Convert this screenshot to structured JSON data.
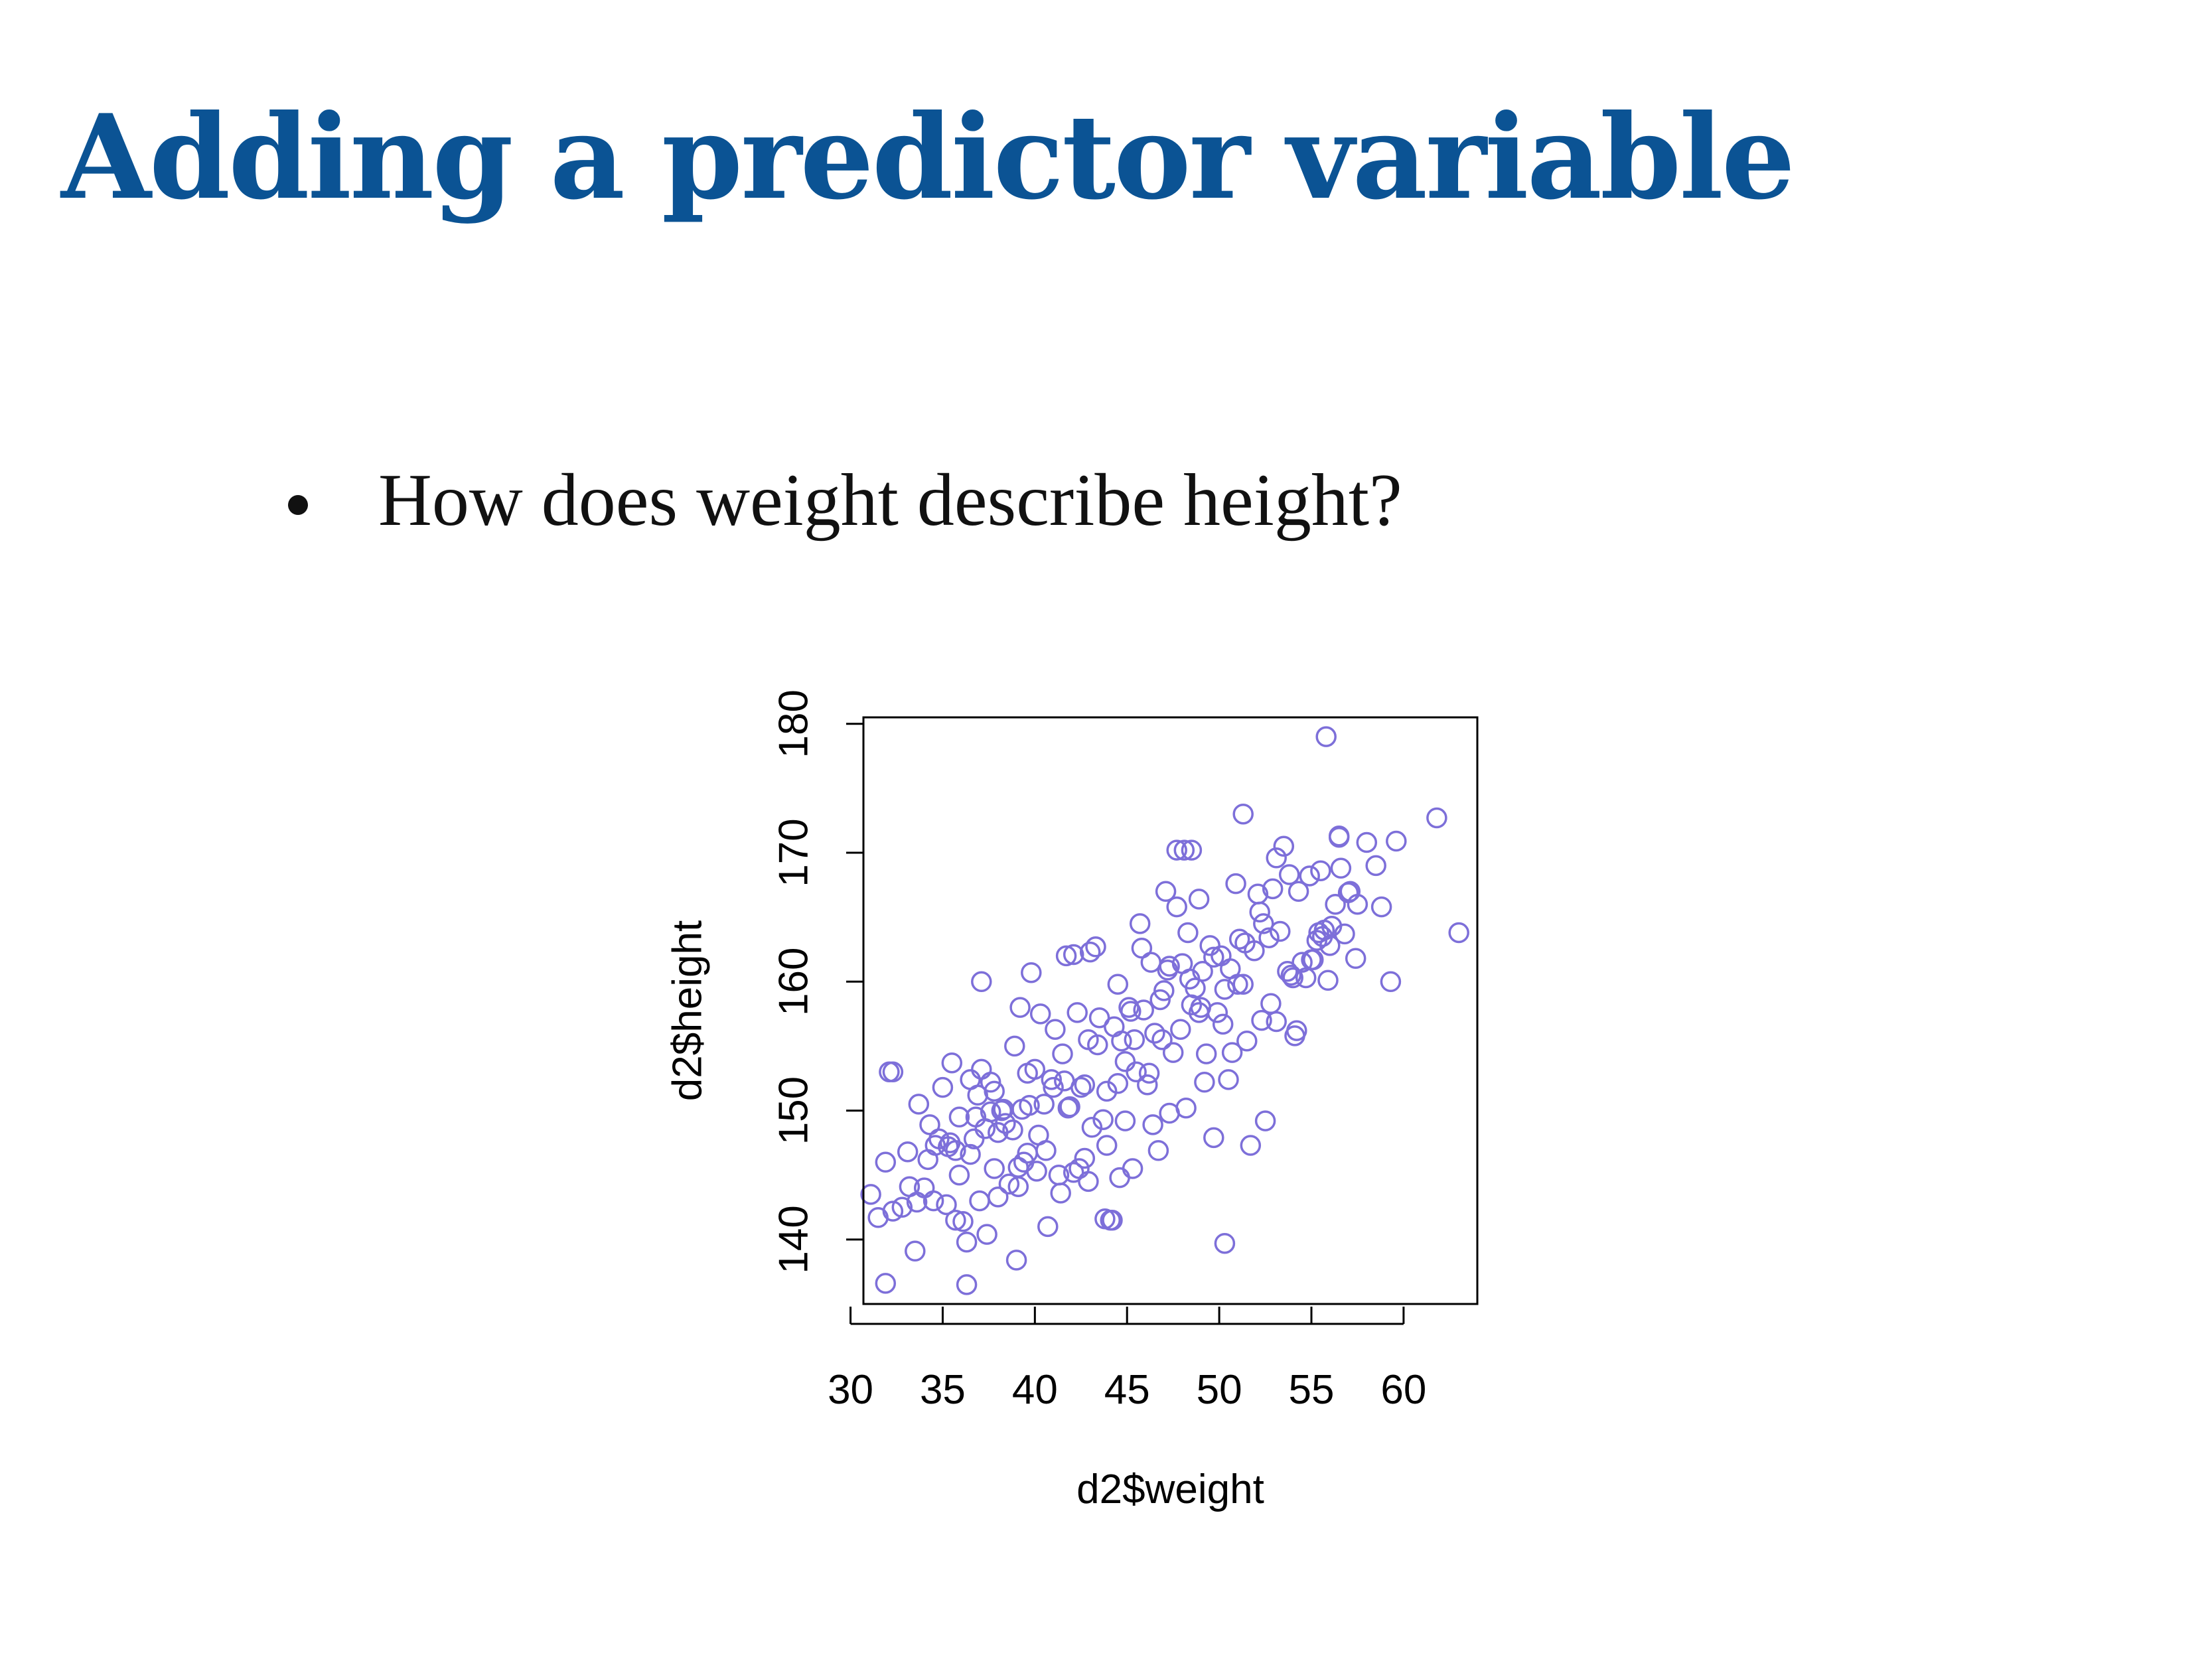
{
  "slide": {
    "title": "Adding a predictor variable",
    "bullets": [
      "How does weight describe height?"
    ]
  },
  "colors": {
    "title": "#0b5394",
    "points": "#7d6fd9",
    "axis": "#000000"
  },
  "chart_data": {
    "type": "scatter",
    "title": "",
    "xlabel": "d2$weight",
    "ylabel": "d2$height",
    "xlim": [
      30.7,
      64
    ],
    "ylim": [
      135,
      180.5
    ],
    "xticks": [
      30,
      35,
      40,
      45,
      50,
      55,
      60
    ],
    "yticks": [
      140,
      150,
      160,
      170,
      180
    ],
    "grid": false,
    "legend": "none",
    "marker": "open-circle",
    "series": [
      {
        "x": [
          31.1,
          31.5,
          31.9,
          32.1,
          32.3,
          32.8,
          33.2,
          33.5,
          33.7,
          34.0,
          34.2,
          34.5,
          34.8,
          35.0,
          35.3,
          35.5,
          35.7,
          35.9,
          36.1,
          36.3,
          36.5,
          36.7,
          36.9,
          37.1,
          37.4,
          37.6,
          37.8,
          38.0,
          38.2,
          38.4,
          38.6,
          38.8,
          39.0,
          39.2,
          39.4,
          39.6,
          39.8,
          40.0,
          40.3,
          40.5,
          40.7,
          40.9,
          41.1,
          41.3,
          41.5,
          41.7,
          41.9,
          42.1,
          42.3,
          42.5,
          42.7,
          42.9,
          43.1,
          43.3,
          43.5,
          43.7,
          43.9,
          44.1,
          44.3,
          44.5,
          44.7,
          44.9,
          45.1,
          45.3,
          45.5,
          45.7,
          45.9,
          46.1,
          46.3,
          46.5,
          46.7,
          46.9,
          47.1,
          47.3,
          47.5,
          47.7,
          47.9,
          48.1,
          48.3,
          48.5,
          48.7,
          48.9,
          49.1,
          49.3,
          49.5,
          49.7,
          49.9,
          50.1,
          50.3,
          50.5,
          50.7,
          50.9,
          51.1,
          51.3,
          51.5,
          51.7,
          51.9,
          52.1,
          52.3,
          52.5,
          52.7,
          52.9,
          53.1,
          53.3,
          53.5,
          53.7,
          53.9,
          54.1,
          54.3,
          54.5,
          54.7,
          54.9,
          55.1,
          55.3,
          55.5,
          55.7,
          55.9,
          56.1,
          56.3,
          56.5,
          56.8,
          57.1,
          57.5,
          58.0,
          58.5,
          58.8,
          59.3,
          59.6,
          61.8,
          63.0,
          55.8,
          51.3,
          47.7,
          48.5,
          37.1,
          39.6,
          32.3,
          35.7,
          36.5,
          37.6,
          38.3,
          39.1,
          40.6,
          41.4,
          42.9,
          43.8,
          44.6,
          45.4,
          46.2,
          47.0,
          48.0,
          49.0,
          50.2,
          51.0,
          52.4,
          53.1,
          54.0,
          55.0,
          56.0,
          56.5,
          57.0,
          50.3,
          44.2,
          41.0,
          43.0,
          31.9,
          36.3,
          39.1,
          33.6,
          35.4,
          37.0,
          38.0,
          40.2,
          41.8,
          42.7,
          44.5,
          46.8,
          48.4,
          49.7,
          51.4,
          52.8,
          54.2,
          55.6,
          56.6,
          57.4,
          45.8,
          47.3,
          49.2,
          42.1,
          40.1,
          38.9,
          36.8,
          34.6,
          33.1,
          35.2,
          37.8,
          39.7,
          41.6,
          43.4,
          45.2,
          47.2,
          48.9,
          50.6,
          52.2,
          53.8,
          55.4,
          43.9,
          46.4,
          48.2,
          44.9,
          42.4,
          39.3,
          37.3,
          35.9,
          34.3
        ],
        "y": [
          143.5,
          141.7,
          146.0,
          153.0,
          142.2,
          142.5,
          144.1,
          139.1,
          150.5,
          144.0,
          146.2,
          143.0,
          147.8,
          151.8,
          147.2,
          153.7,
          146.9,
          149.5,
          141.4,
          136.5,
          152.4,
          147.8,
          151.2,
          160.0,
          140.4,
          149.9,
          145.5,
          143.3,
          150.0,
          149.0,
          144.3,
          148.5,
          138.4,
          158.0,
          146.0,
          152.9,
          160.7,
          153.2,
          157.5,
          150.5,
          141.0,
          152.4,
          156.3,
          145.0,
          154.4,
          162.0,
          150.3,
          145.2,
          157.6,
          151.8,
          146.3,
          155.5,
          148.7,
          162.7,
          157.2,
          149.3,
          151.5,
          141.5,
          156.5,
          159.8,
          155.4,
          149.2,
          158.0,
          145.5,
          153.0,
          164.5,
          157.8,
          152.0,
          161.5,
          156.0,
          146.9,
          155.5,
          167.0,
          161.2,
          154.5,
          165.8,
          156.3,
          170.2,
          163.8,
          158.2,
          159.5,
          166.4,
          160.8,
          154.4,
          162.8,
          147.9,
          157.6,
          162.0,
          159.4,
          152.4,
          154.5,
          167.6,
          163.3,
          159.8,
          155.4,
          147.3,
          162.4,
          166.8,
          157.0,
          149.2,
          163.4,
          167.2,
          156.9,
          163.9,
          170.5,
          160.8,
          160.5,
          155.8,
          167.0,
          161.5,
          160.3,
          168.2,
          161.7,
          163.2,
          168.6,
          164.0,
          160.1,
          164.3,
          166.0,
          171.3,
          163.7,
          167.0,
          166.0,
          170.8,
          169.0,
          165.8,
          160.0,
          170.9,
          172.7,
          163.8,
          179.0,
          173.0,
          170.2,
          170.2,
          153.2,
          146.7,
          153.0,
          141.5,
          146.6,
          152.2,
          150.1,
          145.6,
          146.9,
          143.6,
          144.5,
          141.6,
          144.8,
          155.5,
          152.9,
          159.3,
          161.4,
          158.0,
          156.7,
          159.8,
          164.5,
          169.6,
          160.3,
          161.7,
          162.8,
          171.2,
          166.9,
          139.7,
          141.5,
          151.8,
          162.3,
          136.6,
          139.8,
          144.1,
          142.9,
          147.5,
          143.0,
          148.3,
          148.1,
          150.2,
          152.0,
          152.1,
          158.6,
          160.2,
          161.9,
          163.0,
          158.3,
          156.2,
          163.5,
          168.8,
          161.8,
          162.6,
          149.8,
          152.2,
          162.1,
          145.3,
          155.0,
          149.5,
          147.3,
          146.8,
          142.7,
          151.5,
          150.4,
          152.3,
          155.1,
          157.7,
          160.9,
          157.6,
          161.0,
          165.4,
          168.3,
          163.8,
          147.3,
          148.9,
          150.2,
          153.8,
          145.5,
          150.1,
          148.6,
          145.0,
          148.9
        ]
      }
    ]
  }
}
